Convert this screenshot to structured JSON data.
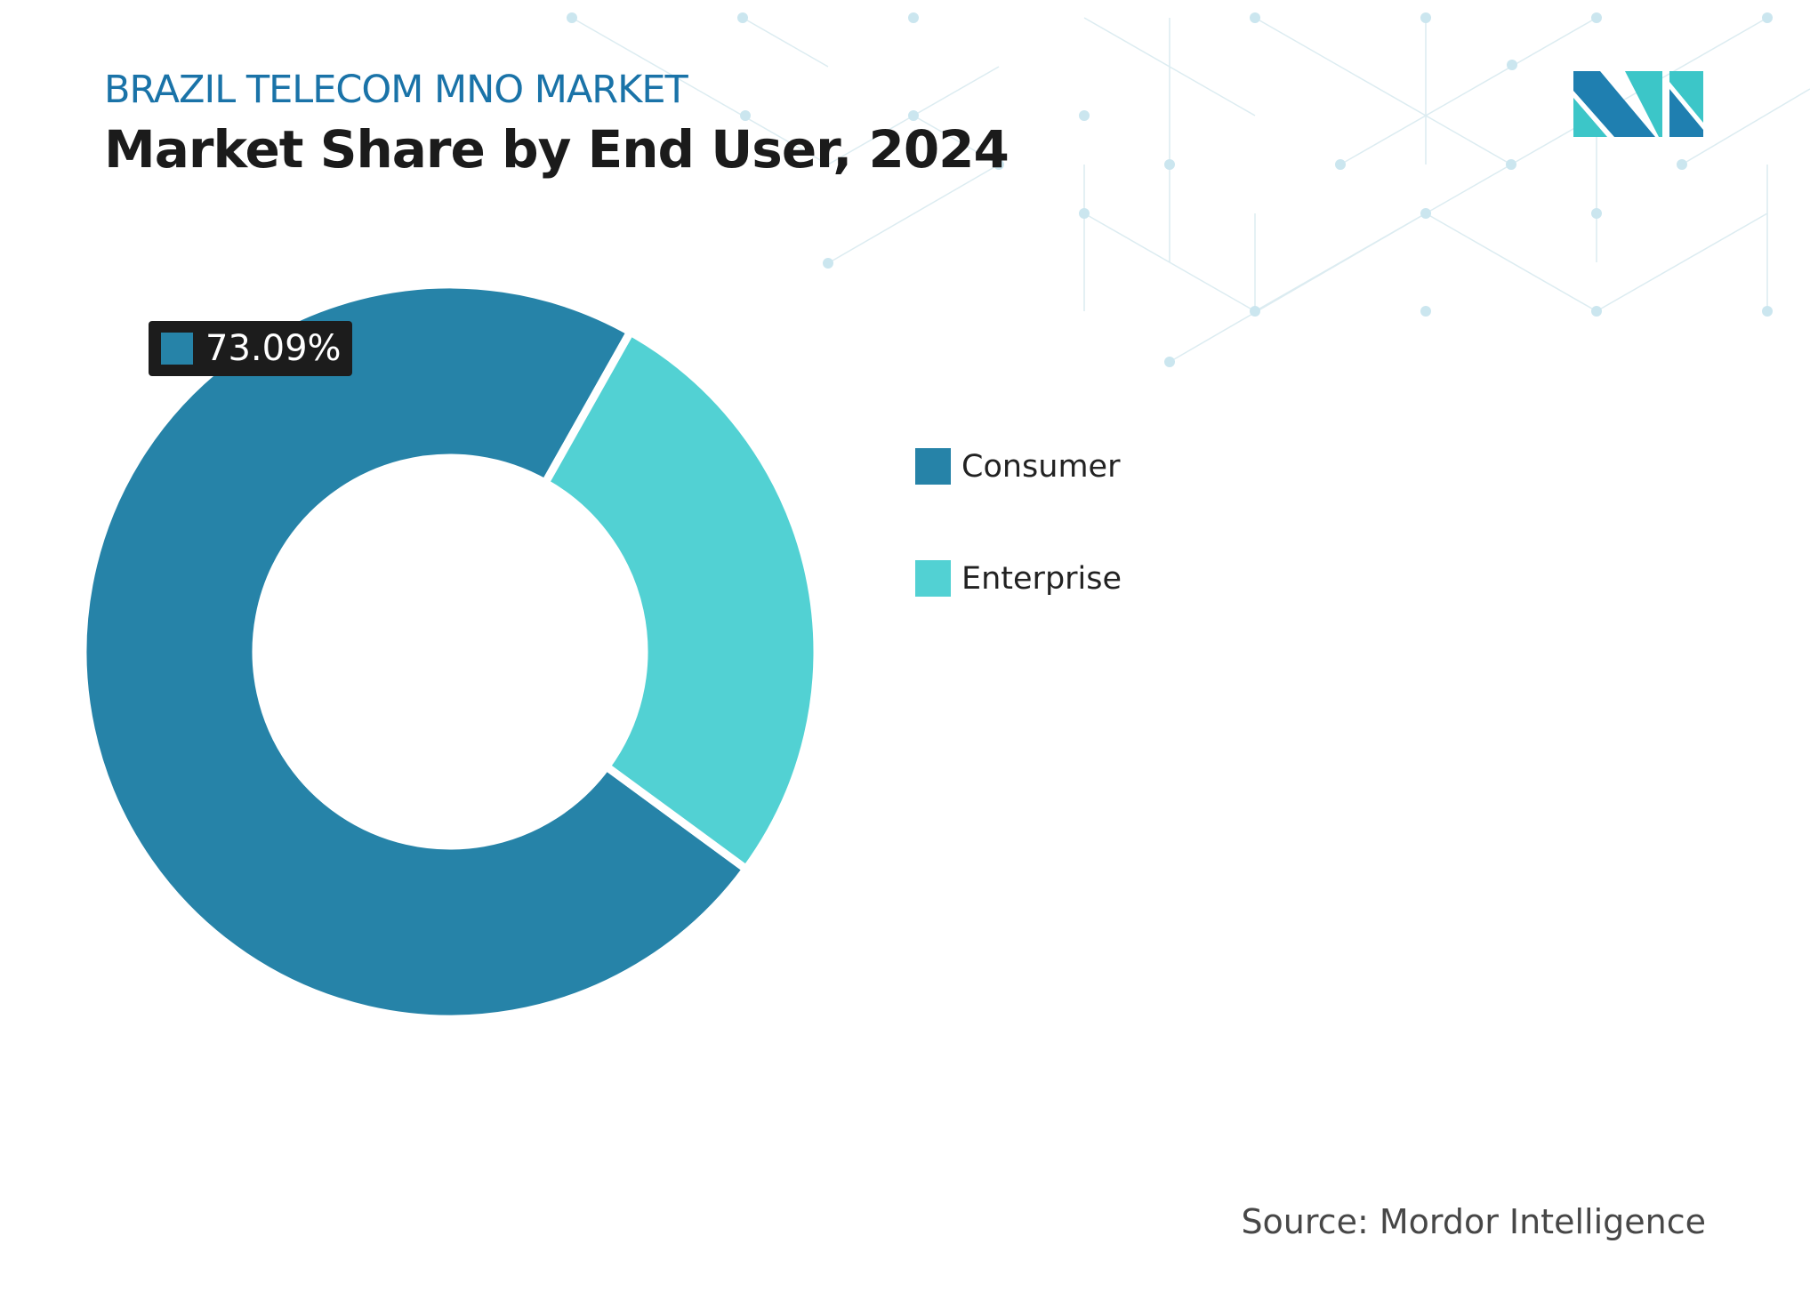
{
  "header": {
    "kicker": "BRAZIL TELECOM MNO MARKET",
    "title": "Market Share by End User, 2024"
  },
  "chart_data": {
    "type": "pie",
    "variant": "donut",
    "categories": [
      "Consumer",
      "Enterprise"
    ],
    "values": [
      73.09,
      26.91
    ],
    "unit": "%",
    "colors": [
      "#2683a8",
      "#52d1d3"
    ],
    "data_labels": [
      {
        "category": "Consumer",
        "text": "73.09%"
      }
    ],
    "legend_placement": "right"
  },
  "legend": [
    {
      "label": "Consumer",
      "color": "#2683a8"
    },
    {
      "label": "Enterprise",
      "color": "#52d1d3"
    }
  ],
  "source": "Source: Mordor Intelligence",
  "logo": {
    "name": "mordor-intelligence-logo",
    "colors": [
      "#1f7fb0",
      "#3cc6c8"
    ]
  }
}
